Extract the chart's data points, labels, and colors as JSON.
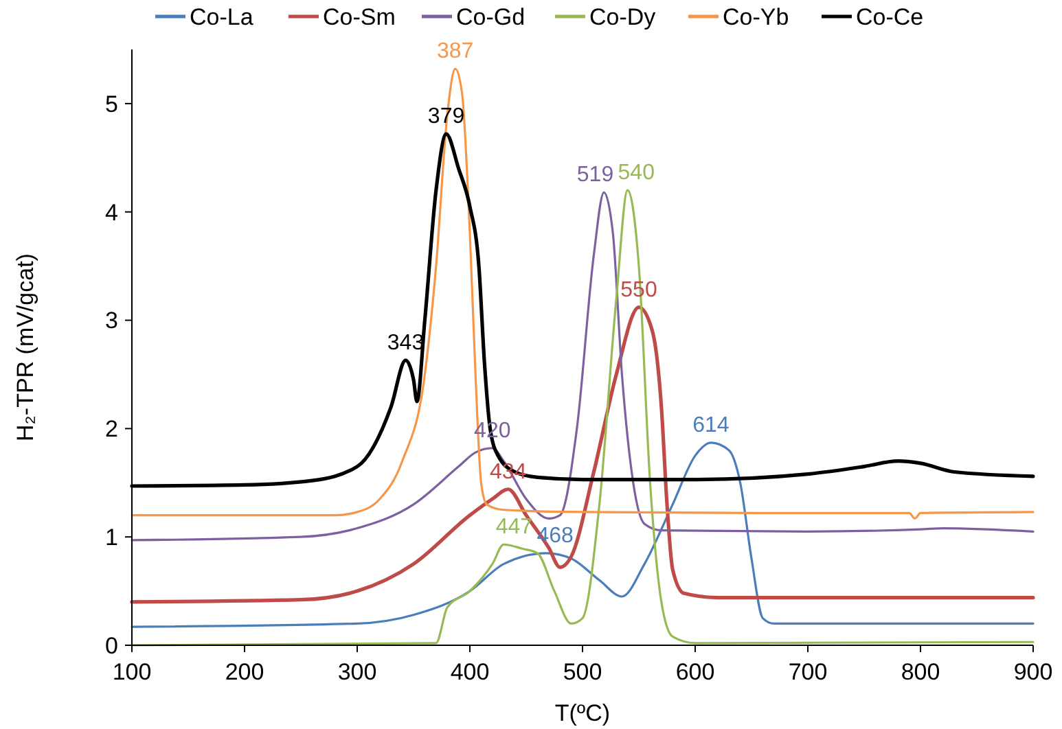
{
  "chart_data": {
    "type": "line",
    "xlabel": "T(ºC)",
    "ylabel": "H₂-TPR (mV/gcat)",
    "xlim": [
      100,
      900
    ],
    "ylim": [
      0,
      5.5
    ],
    "xticks": [
      100,
      200,
      300,
      400,
      500,
      600,
      700,
      800,
      900
    ],
    "yticks": [
      0,
      1,
      2,
      3,
      4,
      5
    ],
    "grid": false,
    "legend": "top",
    "marker": "none",
    "line_style": "solid",
    "series": [
      {
        "name": "Co-La",
        "color": "#4a7ebb",
        "x": [
          100,
          300,
          350,
          400,
          430,
          468,
          490,
          515,
          535,
          555,
          580,
          600,
          614,
          630,
          640,
          650,
          660,
          670,
          900
        ],
        "values": [
          0.17,
          0.2,
          0.28,
          0.5,
          0.75,
          0.85,
          0.8,
          0.6,
          0.45,
          0.75,
          1.3,
          1.75,
          1.87,
          1.8,
          1.5,
          0.8,
          0.25,
          0.2,
          0.2
        ]
      },
      {
        "name": "Co-Sm",
        "color": "#be4b48",
        "x": [
          100,
          250,
          300,
          350,
          400,
          420,
          434,
          450,
          470,
          480,
          490,
          510,
          530,
          550,
          562,
          570,
          575,
          580,
          590,
          620,
          900
        ],
        "values": [
          0.4,
          0.42,
          0.5,
          0.75,
          1.2,
          1.35,
          1.44,
          1.2,
          0.9,
          0.72,
          0.82,
          1.6,
          2.5,
          3.12,
          2.9,
          2.2,
          1.3,
          0.7,
          0.48,
          0.44,
          0.44
        ]
      },
      {
        "name": "Co-Gd",
        "color": "#7d60a0",
        "x": [
          100,
          250,
          300,
          350,
          390,
          405,
          420,
          430,
          450,
          470,
          480,
          495,
          510,
          519,
          527,
          535,
          545,
          555,
          570,
          700,
          800,
          820,
          900
        ],
        "values": [
          0.97,
          1.0,
          1.08,
          1.3,
          1.65,
          1.78,
          1.82,
          1.7,
          1.35,
          1.17,
          1.2,
          2.0,
          3.6,
          4.18,
          3.8,
          2.5,
          1.5,
          1.12,
          1.06,
          1.05,
          1.07,
          1.08,
          1.05
        ]
      },
      {
        "name": "Co-Dy",
        "color": "#98b954",
        "x": [
          100,
          370,
          380,
          400,
          420,
          430,
          447,
          460,
          475,
          490,
          500,
          515,
          530,
          540,
          550,
          560,
          570,
          580,
          600,
          900
        ],
        "values": [
          0.0,
          0.02,
          0.35,
          0.5,
          0.75,
          0.93,
          0.89,
          0.85,
          0.5,
          0.2,
          0.25,
          1.3,
          3.2,
          4.2,
          3.5,
          1.5,
          0.4,
          0.08,
          0.02,
          0.03
        ]
      },
      {
        "name": "Co-Yb",
        "color": "#f79646",
        "x": [
          100,
          280,
          300,
          320,
          340,
          360,
          370,
          380,
          387,
          393,
          400,
          405,
          410,
          415,
          430,
          500,
          700,
          790,
          795,
          800,
          900
        ],
        "values": [
          1.2,
          1.2,
          1.23,
          1.35,
          1.7,
          2.5,
          3.5,
          4.9,
          5.32,
          5.1,
          3.8,
          2.5,
          1.5,
          1.3,
          1.25,
          1.23,
          1.22,
          1.22,
          1.17,
          1.22,
          1.23
        ]
      },
      {
        "name": "Co-Ce",
        "color": "#000000",
        "x": [
          100,
          200,
          260,
          300,
          330,
          343,
          350,
          353,
          360,
          370,
          379,
          390,
          400,
          408,
          413,
          418,
          425,
          440,
          460,
          500,
          600,
          700,
          750,
          780,
          800,
          830,
          900
        ],
        "values": [
          1.47,
          1.48,
          1.52,
          1.65,
          2.2,
          2.63,
          2.45,
          2.25,
          3.0,
          4.2,
          4.72,
          4.4,
          4.05,
          3.5,
          2.6,
          2.0,
          1.75,
          1.6,
          1.55,
          1.53,
          1.53,
          1.58,
          1.65,
          1.7,
          1.68,
          1.6,
          1.56
        ]
      }
    ],
    "annotations": [
      {
        "text": "614",
        "x": 614,
        "y": 1.87
      },
      {
        "text": "468",
        "x": 468,
        "y": 0.85
      },
      {
        "text": "434",
        "x": 434,
        "y": 1.44
      },
      {
        "text": "550",
        "x": 550,
        "y": 3.12
      },
      {
        "text": "420",
        "x": 420,
        "y": 1.82
      },
      {
        "text": "519",
        "x": 519,
        "y": 4.18
      },
      {
        "text": "447",
        "x": 447,
        "y": 0.93
      },
      {
        "text": "540",
        "x": 540,
        "y": 4.2
      },
      {
        "text": "387",
        "x": 387,
        "y": 5.32
      },
      {
        "text": "379",
        "x": 379,
        "y": 4.72
      },
      {
        "text": "343",
        "x": 343,
        "y": 2.63
      }
    ]
  }
}
